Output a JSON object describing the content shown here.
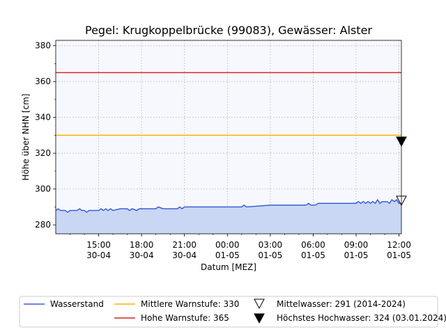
{
  "chart_data": {
    "type": "area",
    "title": "Pegel:  Krugkoppelbrücke (99083), Gewässer:  Alster",
    "xlabel": "Datum [MEZ]",
    "ylabel": "Höhe über NHN [cm]",
    "ylim": [
      275,
      383
    ],
    "xlim": [
      "2024-04-30T12:00",
      "2024-05-01T12:10"
    ],
    "grid": true,
    "legend_placement": "bottom",
    "x_ticks": [
      {
        "t": "2024-04-30T15:00",
        "time": "15:00",
        "date": "30-04"
      },
      {
        "t": "2024-04-30T18:00",
        "time": "18:00",
        "date": "30-04"
      },
      {
        "t": "2024-04-30T21:00",
        "time": "21:00",
        "date": "30-04"
      },
      {
        "t": "2024-05-01T00:00",
        "time": "00:00",
        "date": "01-05"
      },
      {
        "t": "2024-05-01T03:00",
        "time": "03:00",
        "date": "01-05"
      },
      {
        "t": "2024-05-01T06:00",
        "time": "06:00",
        "date": "01-05"
      },
      {
        "t": "2024-05-01T09:00",
        "time": "09:00",
        "date": "01-05"
      },
      {
        "t": "2024-05-01T12:00",
        "time": "12:00",
        "date": "01-05"
      }
    ],
    "y_ticks": [
      280,
      300,
      320,
      340,
      360,
      380
    ],
    "series": [
      {
        "name": "Wasserstand",
        "color": "#3b5fd6",
        "fill": "#c9d7f5",
        "x": [
          "2024-04-30T12:00",
          "2024-04-30T12:10",
          "2024-04-30T12:20",
          "2024-04-30T12:30",
          "2024-04-30T12:40",
          "2024-04-30T12:50",
          "2024-04-30T13:00",
          "2024-04-30T13:30",
          "2024-04-30T13:40",
          "2024-04-30T13:50",
          "2024-04-30T14:00",
          "2024-04-30T14:10",
          "2024-04-30T14:20",
          "2024-04-30T15:00",
          "2024-04-30T15:10",
          "2024-04-30T15:20",
          "2024-04-30T15:30",
          "2024-04-30T15:40",
          "2024-04-30T15:50",
          "2024-04-30T16:00",
          "2024-04-30T16:30",
          "2024-04-30T17:00",
          "2024-04-30T17:10",
          "2024-04-30T17:20",
          "2024-04-30T17:40",
          "2024-04-30T17:50",
          "2024-04-30T18:00",
          "2024-04-30T18:30",
          "2024-04-30T19:00",
          "2024-04-30T19:10",
          "2024-04-30T19:30",
          "2024-04-30T20:30",
          "2024-04-30T20:40",
          "2024-04-30T20:50",
          "2024-04-30T21:00",
          "2024-04-30T21:30",
          "2024-04-30T22:30",
          "2024-05-01T00:00",
          "2024-05-01T01:00",
          "2024-05-01T01:10",
          "2024-05-01T01:20",
          "2024-05-01T03:00",
          "2024-05-01T05:30",
          "2024-05-01T05:40",
          "2024-05-01T05:50",
          "2024-05-01T06:10",
          "2024-05-01T06:20",
          "2024-05-01T08:00",
          "2024-05-01T09:00",
          "2024-05-01T09:10",
          "2024-05-01T09:20",
          "2024-05-01T09:30",
          "2024-05-01T09:40",
          "2024-05-01T09:50",
          "2024-05-01T10:00",
          "2024-05-01T10:10",
          "2024-05-01T10:20",
          "2024-05-01T10:30",
          "2024-05-01T10:40",
          "2024-05-01T10:50",
          "2024-05-01T11:00",
          "2024-05-01T11:10",
          "2024-05-01T11:20",
          "2024-05-01T11:30",
          "2024-05-01T11:40",
          "2024-05-01T11:50",
          "2024-05-01T12:00",
          "2024-05-01T12:10"
        ],
        "y": [
          288,
          289,
          288,
          288,
          288,
          287,
          288,
          288,
          289,
          288,
          288,
          287,
          288,
          288,
          289,
          288,
          289,
          288,
          289,
          288,
          289,
          289,
          288,
          289,
          288,
          289,
          289,
          289,
          289,
          290,
          289,
          289,
          290,
          289,
          290,
          290,
          290,
          290,
          290,
          291,
          290,
          291,
          291,
          292,
          291,
          291,
          292,
          292,
          292,
          293,
          292,
          293,
          292,
          293,
          292,
          293,
          292,
          294,
          292,
          293,
          293,
          293,
          292,
          294,
          293,
          294,
          292,
          292
        ]
      }
    ],
    "thresholds": [
      {
        "name": "Mittlere Warnstufe: 330",
        "value": 330,
        "color": "#f5b400"
      },
      {
        "name": "Hohe Warnstufe: 365",
        "value": 365,
        "color": "#d62728"
      }
    ],
    "markers": [
      {
        "name": "Mittelwasser: 291 (2014-2024)",
        "value": 291,
        "style": "open-triangle-down"
      },
      {
        "name": "Höchstes Hochwasser: 324 (03.01.2024)",
        "value": 324,
        "style": "filled-triangle-down"
      }
    ]
  }
}
